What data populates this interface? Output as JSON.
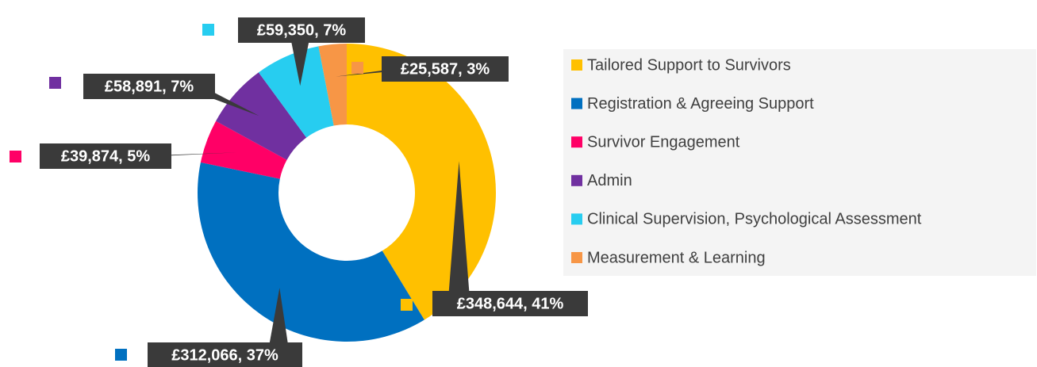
{
  "chart_data": {
    "type": "pie",
    "categories": [
      "Tailored Support to Survivors",
      "Registration & Agreeing Support",
      "Survivor Engagement",
      "Admin",
      "Clinical Supervision, Psychological Assessment",
      "Measurement & Learning"
    ],
    "values": [
      348644,
      312066,
      39874,
      58891,
      59350,
      25587
    ],
    "value_labels": [
      "£348,644, 41%",
      "£312,066, 37%",
      "£39,874, 5%",
      "£58,891, 7%",
      "£59,350, 7%",
      "£25,587, 3%"
    ],
    "colors": [
      "#FFC000",
      "#0070C0",
      "#FF0066",
      "#7030A0",
      "#27CDF0",
      "#F79646"
    ],
    "donut": true,
    "legend": "right"
  }
}
